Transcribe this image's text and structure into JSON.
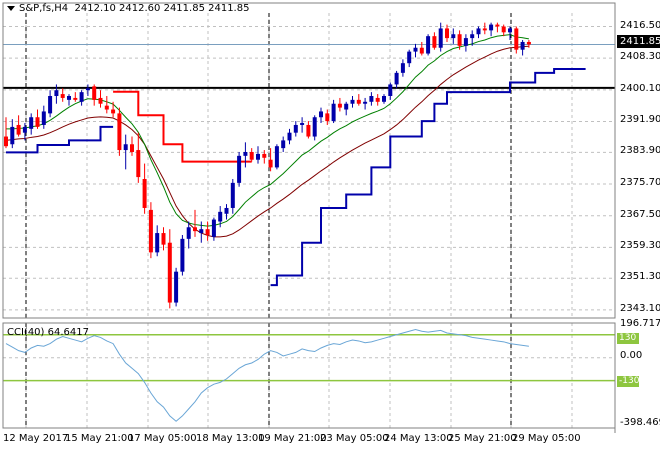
{
  "header": {
    "symbol_info": "S&P,fs,H4",
    "ohlc": "2412.10 2412.60 2411.85 2411.85"
  },
  "indicator": {
    "label": "CCI(40) 64.6417"
  },
  "price_axis": {
    "labels": [
      "2416.50",
      "2408.30",
      "2400.10",
      "2391.90",
      "2383.90",
      "2375.70",
      "2367.50",
      "2359.30",
      "2351.30",
      "2343.10"
    ],
    "current_price": "2411.85"
  },
  "cci_axis": {
    "labels": [
      "196.7175",
      "0.00",
      "-398.469"
    ],
    "level_up": "130",
    "level_down": "-130"
  },
  "time_axis": {
    "labels": [
      "12 May 2017",
      "15 May 21:00",
      "17 May 05:00",
      "18 May 13:00",
      "19 May 21:00",
      "23 May 05:00",
      "24 May 13:00",
      "25 May 21:00",
      "29 May 05:00"
    ]
  },
  "colors": {
    "bull": "#0000aa",
    "bear": "#ff0000",
    "ma_fast": "#008000",
    "ma_slow": "#800000",
    "trail_up": "#0000aa",
    "trail_down": "#ff0000",
    "cci_line": "#6aa6d6",
    "cci_level": "#8ec63f",
    "resistance": "#000000",
    "grid": "#c0c0c0",
    "border": "#808080"
  },
  "chart_data": {
    "type": "candlestick",
    "ylim": [
      2341.0,
      2420.0
    ],
    "candles": [
      [
        2388.0,
        2393.0,
        2385.0,
        2385.5
      ],
      [
        2386.0,
        2392.5,
        2385.0,
        2390.5
      ],
      [
        2391.0,
        2393.5,
        2388.0,
        2388.5
      ],
      [
        2389.0,
        2391.5,
        2387.0,
        2390.5
      ],
      [
        2390.0,
        2394.0,
        2388.5,
        2393.0
      ],
      [
        2393.0,
        2395.0,
        2390.0,
        2390.5
      ],
      [
        2391.0,
        2396.0,
        2390.0,
        2394.5
      ],
      [
        2394.0,
        2400.0,
        2393.0,
        2398.5
      ],
      [
        2398.5,
        2401.5,
        2396.5,
        2400.0
      ],
      [
        2399.0,
        2400.5,
        2397.0,
        2398.0
      ],
      [
        2397.5,
        2399.0,
        2396.0,
        2398.5
      ],
      [
        2398.0,
        2399.5,
        2397.0,
        2397.5
      ],
      [
        2397.0,
        2400.0,
        2396.0,
        2399.5
      ],
      [
        2400.0,
        2401.5,
        2398.5,
        2400.5
      ],
      [
        2401.0,
        2401.5,
        2396.0,
        2397.5
      ],
      [
        2398.0,
        2400.0,
        2395.5,
        2396.5
      ],
      [
        2396.0,
        2398.5,
        2394.0,
        2395.0
      ],
      [
        2395.0,
        2397.0,
        2393.0,
        2394.0
      ],
      [
        2394.0,
        2395.5,
        2383.0,
        2384.5
      ],
      [
        2384.5,
        2388.5,
        2379.5,
        2386.0
      ],
      [
        2386.0,
        2388.0,
        2383.0,
        2384.0
      ],
      [
        2384.5,
        2389.0,
        2376.0,
        2377.5
      ],
      [
        2377.0,
        2381.0,
        2368.0,
        2369.5
      ],
      [
        2369.0,
        2371.0,
        2356.5,
        2358.0
      ],
      [
        2358.0,
        2365.0,
        2357.0,
        2363.0
      ],
      [
        2363.0,
        2364.5,
        2358.5,
        2360.0
      ],
      [
        2360.5,
        2364.0,
        2343.5,
        2345.0
      ],
      [
        2345.0,
        2354.0,
        2344.0,
        2353.0
      ],
      [
        2353.0,
        2362.5,
        2352.0,
        2361.5
      ],
      [
        2361.5,
        2366.0,
        2359.0,
        2364.5
      ],
      [
        2364.5,
        2369.0,
        2362.0,
        2363.5
      ],
      [
        2363.0,
        2366.0,
        2360.5,
        2364.0
      ],
      [
        2364.0,
        2366.0,
        2361.0,
        2362.5
      ],
      [
        2362.0,
        2367.0,
        2361.0,
        2366.5
      ],
      [
        2366.0,
        2370.0,
        2364.5,
        2368.5
      ],
      [
        2368.0,
        2370.5,
        2366.5,
        2369.5
      ],
      [
        2369.5,
        2377.0,
        2368.0,
        2376.0
      ],
      [
        2376.0,
        2384.0,
        2375.0,
        2383.0
      ],
      [
        2383.0,
        2386.5,
        2380.0,
        2384.0
      ],
      [
        2384.0,
        2385.0,
        2381.5,
        2382.0
      ],
      [
        2382.0,
        2385.5,
        2381.0,
        2383.5
      ],
      [
        2383.5,
        2384.5,
        2381.0,
        2382.5
      ],
      [
        2382.0,
        2385.0,
        2379.0,
        2380.0
      ],
      [
        2380.0,
        2386.0,
        2379.5,
        2385.5
      ],
      [
        2385.0,
        2388.0,
        2384.0,
        2387.0
      ],
      [
        2387.0,
        2390.0,
        2386.0,
        2389.0
      ],
      [
        2389.0,
        2392.0,
        2388.0,
        2391.0
      ],
      [
        2391.0,
        2393.0,
        2389.0,
        2391.5
      ],
      [
        2391.0,
        2392.0,
        2387.5,
        2388.0
      ],
      [
        2388.0,
        2393.5,
        2387.0,
        2393.0
      ],
      [
        2393.0,
        2395.5,
        2391.5,
        2394.5
      ],
      [
        2394.0,
        2395.0,
        2391.0,
        2392.0
      ],
      [
        2392.0,
        2397.5,
        2391.5,
        2396.5
      ],
      [
        2396.5,
        2398.0,
        2394.5,
        2395.5
      ],
      [
        2395.0,
        2397.0,
        2393.5,
        2396.5
      ],
      [
        2396.5,
        2398.5,
        2395.5,
        2397.5
      ],
      [
        2397.5,
        2399.0,
        2396.0,
        2396.5
      ],
      [
        2396.5,
        2398.0,
        2395.0,
        2397.0
      ],
      [
        2397.0,
        2399.5,
        2396.0,
        2398.5
      ],
      [
        2398.0,
        2399.0,
        2396.0,
        2397.0
      ],
      [
        2397.0,
        2399.0,
        2396.5,
        2398.5
      ],
      [
        2398.5,
        2402.0,
        2397.5,
        2401.5
      ],
      [
        2401.5,
        2405.0,
        2400.5,
        2404.5
      ],
      [
        2404.5,
        2408.0,
        2403.5,
        2407.0
      ],
      [
        2407.0,
        2410.5,
        2406.0,
        2410.0
      ],
      [
        2410.0,
        2412.0,
        2408.5,
        2411.0
      ],
      [
        2411.0,
        2412.5,
        2409.0,
        2409.5
      ],
      [
        2409.5,
        2414.5,
        2409.0,
        2414.0
      ],
      [
        2414.0,
        2415.0,
        2410.5,
        2411.0
      ],
      [
        2411.0,
        2417.5,
        2410.0,
        2416.0
      ],
      [
        2416.0,
        2417.0,
        2412.5,
        2413.5
      ],
      [
        2413.5,
        2416.0,
        2412.0,
        2414.5
      ],
      [
        2414.5,
        2415.5,
        2410.5,
        2411.5
      ],
      [
        2411.5,
        2414.5,
        2410.0,
        2413.5
      ],
      [
        2413.5,
        2415.5,
        2411.5,
        2414.5
      ],
      [
        2414.5,
        2416.5,
        2413.5,
        2416.0
      ],
      [
        2416.0,
        2417.5,
        2414.5,
        2415.5
      ],
      [
        2415.5,
        2417.5,
        2414.0,
        2417.0
      ],
      [
        2417.0,
        2417.5,
        2415.0,
        2416.5
      ],
      [
        2416.5,
        2417.0,
        2414.0,
        2415.0
      ],
      [
        2415.0,
        2416.5,
        2413.0,
        2416.0
      ],
      [
        2416.0,
        2416.5,
        2409.5,
        2410.5
      ],
      [
        2410.5,
        2413.0,
        2409.0,
        2412.5
      ],
      [
        2412.5,
        2413.0,
        2411.0,
        2411.85
      ]
    ],
    "ma_fast": [
      2390.0,
      2390.0,
      2390.1,
      2390.2,
      2390.5,
      2390.8,
      2391.3,
      2392.2,
      2393.3,
      2394.5,
      2395.6,
      2396.5,
      2397.2,
      2397.8,
      2397.7,
      2397.5,
      2397.0,
      2396.4,
      2394.8,
      2393.0,
      2391.3,
      2389.1,
      2386.0,
      2382.0,
      2378.6,
      2375.0,
      2371.0,
      2368.0,
      2366.3,
      2365.6,
      2365.2,
      2365.0,
      2364.8,
      2365.0,
      2365.4,
      2366.0,
      2367.3,
      2369.1,
      2371.0,
      2372.4,
      2373.8,
      2374.8,
      2375.6,
      2377.0,
      2378.4,
      2380.0,
      2381.6,
      2383.2,
      2384.2,
      2385.5,
      2386.8,
      2387.8,
      2389.0,
      2390.0,
      2390.8,
      2391.8,
      2392.6,
      2393.3,
      2394.0,
      2394.6,
      2395.3,
      2396.5,
      2398.0,
      2399.6,
      2401.5,
      2403.4,
      2404.8,
      2406.5,
      2407.6,
      2409.0,
      2410.0,
      2410.8,
      2411.2,
      2411.6,
      2412.0,
      2412.6,
      2413.0,
      2413.6,
      2414.0,
      2414.2,
      2414.4,
      2413.8,
      2413.6,
      2413.3
    ],
    "ma_slow": [
      2387.0,
      2387.2,
      2387.4,
      2387.5,
      2387.8,
      2388.0,
      2388.4,
      2389.0,
      2389.7,
      2390.5,
      2391.2,
      2391.8,
      2392.3,
      2392.8,
      2393.0,
      2393.1,
      2393.0,
      2392.8,
      2392.0,
      2391.0,
      2389.8,
      2388.2,
      2386.0,
      2383.0,
      2380.0,
      2377.0,
      2373.5,
      2370.0,
      2367.5,
      2365.5,
      2364.0,
      2363.0,
      2362.4,
      2362.0,
      2362.0,
      2362.2,
      2362.8,
      2363.8,
      2365.0,
      2366.2,
      2367.4,
      2368.5,
      2369.5,
      2370.7,
      2371.8,
      2373.0,
      2374.3,
      2375.6,
      2376.7,
      2377.9,
      2379.1,
      2380.2,
      2381.4,
      2382.5,
      2383.5,
      2384.5,
      2385.4,
      2386.3,
      2387.1,
      2387.9,
      2388.7,
      2389.8,
      2391.0,
      2392.4,
      2394.0,
      2395.6,
      2397.0,
      2398.6,
      2400.0,
      2401.5,
      2402.8,
      2404.0,
      2405.0,
      2406.0,
      2406.9,
      2407.8,
      2408.6,
      2409.4,
      2410.1,
      2410.6,
      2411.0,
      2411.1,
      2411.3,
      2411.4
    ],
    "trail_up_segments": [
      [
        [
          0,
          2383.9
        ],
        [
          5,
          2383.9
        ],
        [
          5,
          2385.8
        ],
        [
          10,
          2385.8
        ],
        [
          10,
          2387.0
        ],
        [
          15,
          2387.0
        ],
        [
          15,
          2390.5
        ],
        [
          17,
          2390.5
        ]
      ],
      [
        [
          42,
          2349.5
        ],
        [
          43,
          2349.5
        ],
        [
          43,
          2352.0
        ],
        [
          47,
          2352.0
        ],
        [
          47,
          2360.5
        ],
        [
          50,
          2360.5
        ],
        [
          50,
          2369.5
        ],
        [
          54,
          2369.5
        ],
        [
          54,
          2373.0
        ],
        [
          58,
          2373.0
        ],
        [
          58,
          2380.0
        ],
        [
          61,
          2380.0
        ],
        [
          61,
          2388.0
        ],
        [
          66,
          2388.0
        ],
        [
          66,
          2392.0
        ],
        [
          68,
          2392.0
        ],
        [
          68,
          2396.5
        ],
        [
          70,
          2396.5
        ],
        [
          70,
          2399.5
        ],
        [
          80,
          2399.5
        ],
        [
          80,
          2402.0
        ],
        [
          84,
          2402.0
        ],
        [
          84,
          2404.5
        ],
        [
          87,
          2404.5
        ],
        [
          87,
          2405.5
        ],
        [
          92,
          2405.5
        ]
      ]
    ],
    "trail_down_segments": [
      [
        [
          17,
          2399.6
        ],
        [
          21,
          2399.6
        ],
        [
          21,
          2393.5
        ],
        [
          25,
          2393.5
        ],
        [
          25,
          2386.0
        ],
        [
          28,
          2386.0
        ],
        [
          28,
          2381.5
        ],
        [
          39,
          2381.5
        ]
      ]
    ],
    "resistance_level": 2400.6,
    "cci": {
      "ylim": [
        -398.469,
        196.7175
      ],
      "levels": [
        130,
        0,
        -130
      ],
      "values": [
        80,
        60,
        40,
        30,
        55,
        70,
        65,
        80,
        105,
        120,
        110,
        100,
        90,
        110,
        125,
        115,
        95,
        80,
        20,
        -30,
        -60,
        -90,
        -140,
        -200,
        -250,
        -280,
        -330,
        -360,
        -330,
        -290,
        -250,
        -200,
        -170,
        -150,
        -140,
        -120,
        -90,
        -60,
        -40,
        -30,
        -10,
        20,
        40,
        30,
        10,
        20,
        30,
        50,
        40,
        35,
        55,
        70,
        80,
        75,
        90,
        100,
        95,
        85,
        90,
        100,
        110,
        120,
        130,
        140,
        150,
        160,
        150,
        145,
        150,
        155,
        140,
        135,
        130,
        125,
        115,
        110,
        105,
        100,
        95,
        90,
        80,
        75,
        70,
        64.64
      ]
    }
  }
}
